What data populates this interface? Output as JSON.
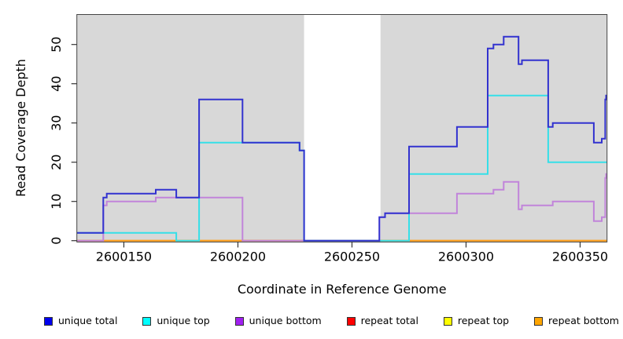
{
  "figure": {
    "xlabel": "Coordinate in Reference Genome",
    "ylabel": "Read Coverage Depth"
  },
  "chart_data": {
    "type": "line",
    "style": "step",
    "title": "",
    "xlabel": "Coordinate in Reference Genome",
    "ylabel": "Read Coverage Depth",
    "xlim": [
      2600129.4,
      2600361.8
    ],
    "ylim": [
      -0.4,
      57.6
    ],
    "x_ticks": [
      2600150,
      2600200,
      2600250,
      2600300,
      2600350
    ],
    "x_tick_labels": [
      "2600150",
      "2600200",
      "2600250",
      "2600300",
      "2600350"
    ],
    "y_ticks": [
      0,
      10,
      20,
      30,
      40,
      50
    ],
    "y_tick_labels": [
      "0",
      "10",
      "20",
      "30",
      "40",
      "50"
    ],
    "grid": false,
    "plot_bg": "#d8d8d8",
    "page_bg": "#ffffff",
    "box_color": "#444444",
    "tick_color": "#333333",
    "no_coverage_band": {
      "x0": 2600229,
      "x1": 2600262.5,
      "color": "#ffffff"
    },
    "legend_position": "bottom",
    "draw_order": [
      3,
      4,
      5,
      2,
      1,
      0
    ],
    "series": [
      {
        "name": "unique total",
        "legend_color": "#0000ee",
        "stroke": "#3232cf",
        "points": [
          [
            2600129.4,
            2
          ],
          [
            2600141,
            11
          ],
          [
            2600142.5,
            12
          ],
          [
            2600164,
            13
          ],
          [
            2600173,
            11
          ],
          [
            2600183,
            36
          ],
          [
            2600202,
            25
          ],
          [
            2600227,
            23
          ],
          [
            2600229,
            0
          ],
          [
            2600262,
            6
          ],
          [
            2600264.5,
            7
          ],
          [
            2600275,
            24
          ],
          [
            2600296,
            29
          ],
          [
            2600309.5,
            49
          ],
          [
            2600312,
            50
          ],
          [
            2600316.5,
            52
          ],
          [
            2600323,
            45
          ],
          [
            2600324.5,
            46
          ],
          [
            2600336,
            29
          ],
          [
            2600338,
            30
          ],
          [
            2600356,
            25
          ],
          [
            2600359.5,
            26
          ],
          [
            2600361,
            36
          ],
          [
            2600361.4,
            37
          ]
        ]
      },
      {
        "name": "unique top",
        "legend_color": "#00ffff",
        "stroke": "#35dfe8",
        "points": [
          [
            2600129.4,
            2
          ],
          [
            2600173,
            0
          ],
          [
            2600183,
            25
          ],
          [
            2600227,
            23
          ],
          [
            2600229,
            0
          ],
          [
            2600275,
            17
          ],
          [
            2600309.5,
            37
          ],
          [
            2600336,
            20
          ]
        ]
      },
      {
        "name": "unique bottom",
        "legend_color": "#a020f0",
        "stroke": "#c184da",
        "points": [
          [
            2600129.4,
            0
          ],
          [
            2600141,
            9
          ],
          [
            2600142.5,
            10
          ],
          [
            2600164,
            11
          ],
          [
            2600202,
            0
          ],
          [
            2600262,
            6
          ],
          [
            2600264.5,
            7
          ],
          [
            2600296,
            12
          ],
          [
            2600312,
            13
          ],
          [
            2600316.5,
            15
          ],
          [
            2600323,
            8
          ],
          [
            2600324.5,
            9
          ],
          [
            2600338,
            10
          ],
          [
            2600356,
            5
          ],
          [
            2600359.5,
            6
          ],
          [
            2600361,
            16
          ],
          [
            2600361.4,
            17
          ]
        ]
      },
      {
        "name": "repeat total",
        "legend_color": "#ff0000",
        "stroke": "#e8466e",
        "points": [
          [
            2600129.4,
            0
          ]
        ]
      },
      {
        "name": "repeat top",
        "legend_color": "#ffff00",
        "stroke": "#f5e642",
        "points": [
          [
            2600129.4,
            0
          ]
        ]
      },
      {
        "name": "repeat bottom",
        "legend_color": "#ffa500",
        "stroke": "#ffa01e",
        "points": [
          [
            2600129.4,
            0
          ]
        ]
      }
    ]
  }
}
